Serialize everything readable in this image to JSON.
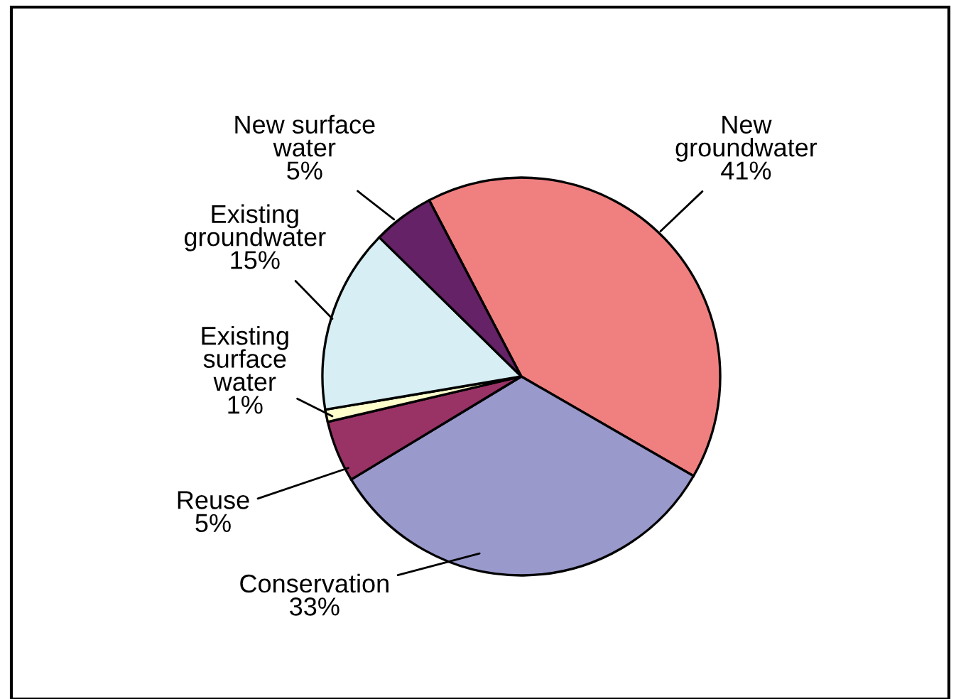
{
  "chart_data": {
    "type": "pie",
    "categories": [
      "New\ngroundwater",
      "Conservation",
      "Reuse",
      "Existing\nsurface\nwater",
      "Existing\ngroundwater",
      "New surface\nwater"
    ],
    "values": [
      41,
      33,
      5,
      1,
      15,
      5
    ],
    "value_labels": [
      "41%",
      "33%",
      "5%",
      "1%",
      "15%",
      "5%"
    ],
    "colors": [
      "#f08080",
      "#9999cc",
      "#993366",
      "#ffffcc",
      "#d6eef4",
      "#662266"
    ]
  }
}
